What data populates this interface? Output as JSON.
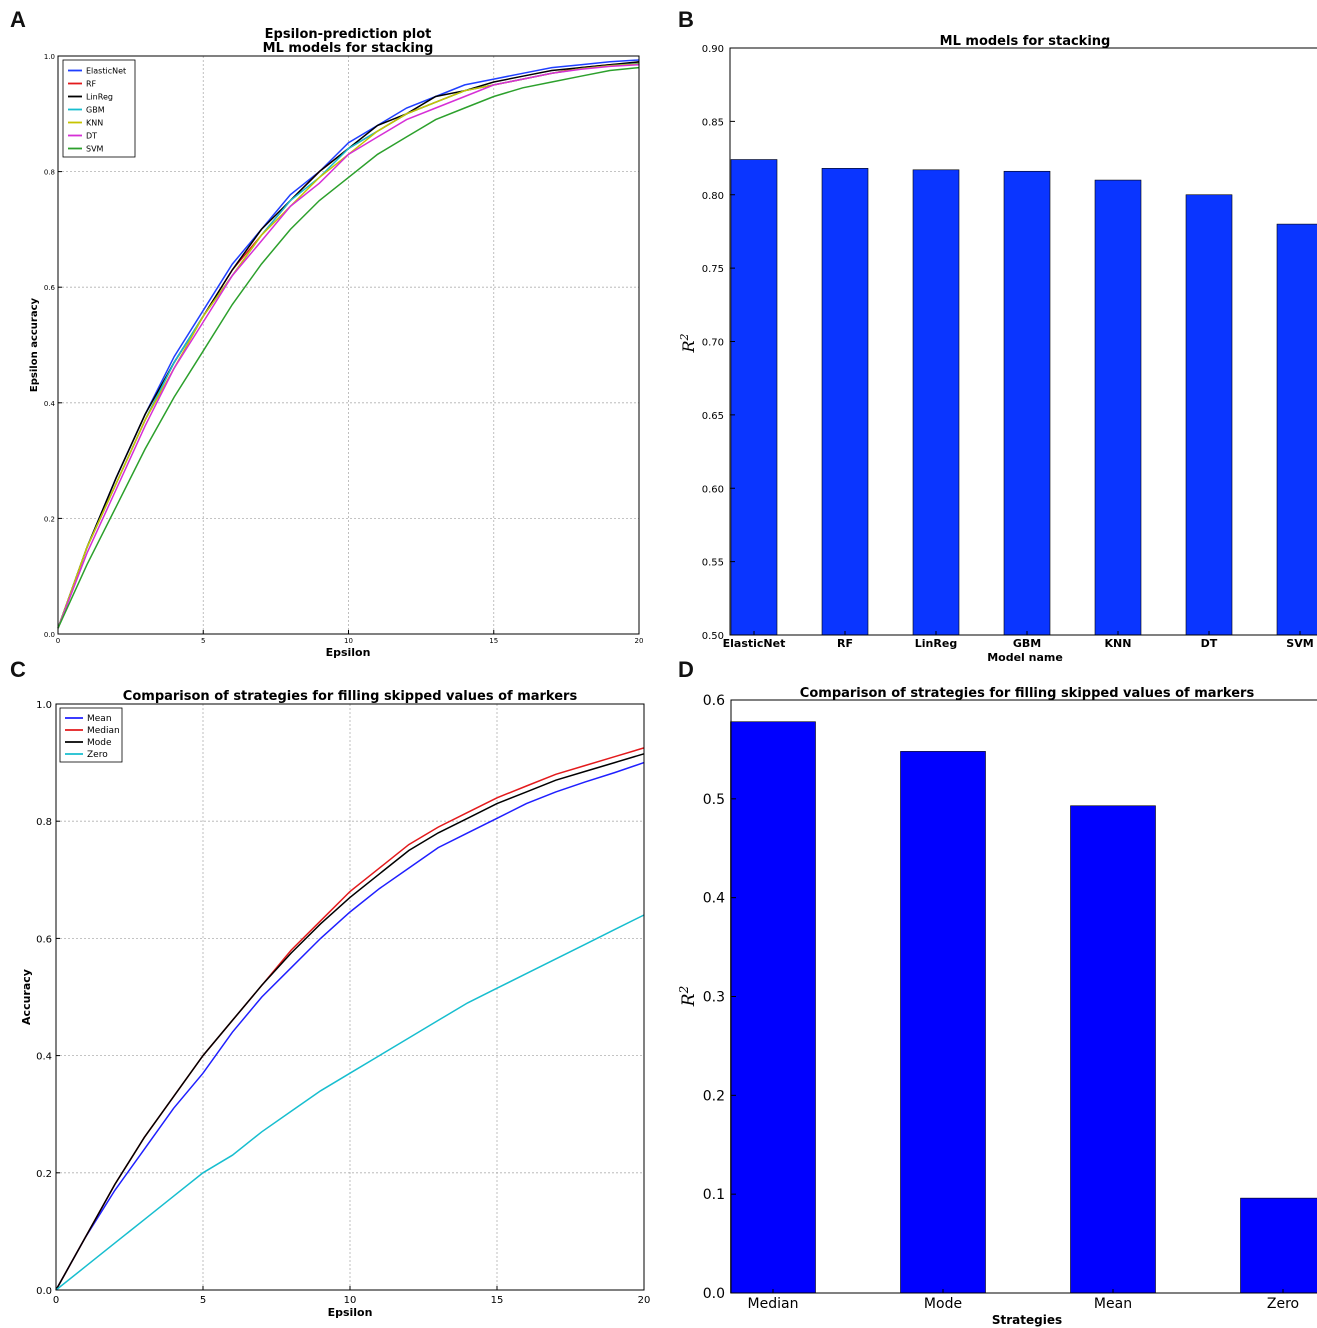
{
  "panel_letters": {
    "a": "A",
    "b": "B",
    "c": "C",
    "d": "D"
  },
  "chart_data": [
    {
      "panel": "A",
      "type": "line",
      "title": "Epsilon-prediction plot",
      "subtitle": "ML models for stacking",
      "xlabel": "Epsilon",
      "ylabel": "Epsilon accuracy",
      "xlim": [
        0,
        20
      ],
      "ylim": [
        0,
        1.0
      ],
      "grid": true,
      "legend": "top-left",
      "x_ticks": [
        "0",
        "5",
        "10",
        "15",
        "20"
      ],
      "y_ticks": [
        "0.0",
        "0.2",
        "0.4",
        "0.6",
        "0.8",
        "1.0"
      ],
      "x": [
        0,
        1,
        2,
        3,
        4,
        5,
        6,
        7,
        8,
        9,
        10,
        11,
        12,
        13,
        14,
        15,
        16,
        17,
        18,
        19,
        20
      ],
      "series": [
        {
          "name": "ElasticNet",
          "color": "#1f3fff",
          "values": [
            0.01,
            0.15,
            0.27,
            0.38,
            0.48,
            0.56,
            0.64,
            0.7,
            0.76,
            0.8,
            0.85,
            0.88,
            0.91,
            0.93,
            0.95,
            0.96,
            0.97,
            0.98,
            0.985,
            0.99,
            0.993
          ]
        },
        {
          "name": "RF",
          "color": "#e31a1c",
          "values": [
            0.01,
            0.15,
            0.26,
            0.37,
            0.47,
            0.55,
            0.63,
            0.69,
            0.75,
            0.8,
            0.84,
            0.87,
            0.9,
            0.92,
            0.94,
            0.95,
            0.96,
            0.97,
            0.98,
            0.985,
            0.988
          ]
        },
        {
          "name": "LinReg",
          "color": "#000000",
          "values": [
            0.01,
            0.15,
            0.27,
            0.38,
            0.47,
            0.55,
            0.63,
            0.7,
            0.75,
            0.8,
            0.84,
            0.88,
            0.9,
            0.93,
            0.94,
            0.955,
            0.965,
            0.975,
            0.98,
            0.985,
            0.99
          ]
        },
        {
          "name": "GBM",
          "color": "#17becf",
          "values": [
            0.01,
            0.15,
            0.26,
            0.37,
            0.47,
            0.55,
            0.62,
            0.69,
            0.75,
            0.79,
            0.84,
            0.87,
            0.9,
            0.92,
            0.94,
            0.95,
            0.96,
            0.97,
            0.978,
            0.983,
            0.987
          ]
        },
        {
          "name": "KNN",
          "color": "#c7c400",
          "values": [
            0.01,
            0.15,
            0.26,
            0.37,
            0.46,
            0.55,
            0.62,
            0.69,
            0.74,
            0.79,
            0.83,
            0.87,
            0.9,
            0.92,
            0.94,
            0.95,
            0.96,
            0.97,
            0.978,
            0.983,
            0.986
          ]
        },
        {
          "name": "DT",
          "color": "#d62fd6",
          "values": [
            0.01,
            0.14,
            0.25,
            0.36,
            0.46,
            0.54,
            0.62,
            0.68,
            0.74,
            0.78,
            0.83,
            0.86,
            0.89,
            0.91,
            0.93,
            0.95,
            0.96,
            0.97,
            0.977,
            0.982,
            0.985
          ]
        },
        {
          "name": "SVM",
          "color": "#2ca02c",
          "values": [
            0.01,
            0.12,
            0.22,
            0.32,
            0.41,
            0.49,
            0.57,
            0.64,
            0.7,
            0.75,
            0.79,
            0.83,
            0.86,
            0.89,
            0.91,
            0.93,
            0.945,
            0.955,
            0.965,
            0.975,
            0.98
          ]
        }
      ]
    },
    {
      "panel": "B",
      "type": "bar",
      "title": "ML models for stacking",
      "xlabel": "Model name",
      "ylabel": "R²",
      "ylim": [
        0.5,
        0.9
      ],
      "y_ticks": [
        "0.50",
        "0.55",
        "0.60",
        "0.65",
        "0.70",
        "0.75",
        "0.80",
        "0.85",
        "0.90"
      ],
      "categories": [
        "ElasticNet",
        "RF",
        "LinReg",
        "GBM",
        "KNN",
        "DT",
        "SVM"
      ],
      "values": [
        0.824,
        0.818,
        0.817,
        0.816,
        0.81,
        0.8,
        0.78
      ],
      "color": "#0a35ff"
    },
    {
      "panel": "C",
      "type": "line",
      "title": "Comparison of strategies for filling skipped values of markers",
      "xlabel": "Epsilon",
      "ylabel": "Accuracy",
      "xlim": [
        0,
        20
      ],
      "ylim": [
        0,
        1.0
      ],
      "grid": true,
      "legend": "top-left",
      "x_ticks": [
        "0",
        "5",
        "10",
        "15",
        "20"
      ],
      "y_ticks": [
        "0.0",
        "0.2",
        "0.4",
        "0.6",
        "0.8",
        "1.0"
      ],
      "x": [
        0,
        1,
        2,
        3,
        4,
        5,
        6,
        7,
        8,
        9,
        10,
        11,
        12,
        13,
        14,
        15,
        16,
        17,
        18,
        19,
        20
      ],
      "series": [
        {
          "name": "Mean",
          "color": "#1f1fff",
          "values": [
            0.0,
            0.09,
            0.17,
            0.24,
            0.31,
            0.37,
            0.44,
            0.5,
            0.55,
            0.6,
            0.645,
            0.685,
            0.72,
            0.755,
            0.78,
            0.805,
            0.83,
            0.85,
            0.867,
            0.883,
            0.9
          ]
        },
        {
          "name": "Median",
          "color": "#e31a1c",
          "values": [
            0.0,
            0.09,
            0.18,
            0.26,
            0.33,
            0.4,
            0.46,
            0.52,
            0.58,
            0.63,
            0.68,
            0.72,
            0.76,
            0.79,
            0.815,
            0.84,
            0.86,
            0.88,
            0.895,
            0.91,
            0.925
          ]
        },
        {
          "name": "Mode",
          "color": "#000000",
          "values": [
            0.0,
            0.09,
            0.18,
            0.26,
            0.33,
            0.4,
            0.46,
            0.52,
            0.575,
            0.625,
            0.67,
            0.71,
            0.75,
            0.78,
            0.805,
            0.83,
            0.85,
            0.87,
            0.885,
            0.9,
            0.915
          ]
        },
        {
          "name": "Zero",
          "color": "#17becf",
          "values": [
            0.0,
            0.04,
            0.08,
            0.12,
            0.16,
            0.2,
            0.23,
            0.27,
            0.305,
            0.34,
            0.37,
            0.4,
            0.43,
            0.46,
            0.49,
            0.515,
            0.54,
            0.565,
            0.59,
            0.615,
            0.64
          ]
        }
      ]
    },
    {
      "panel": "D",
      "type": "bar",
      "title": "Comparison of strategies for filling skipped values of markers",
      "xlabel": "Strategies",
      "ylabel": "R²",
      "ylim": [
        0.0,
        0.6
      ],
      "y_ticks": [
        "0.0",
        "0.1",
        "0.2",
        "0.3",
        "0.4",
        "0.5",
        "0.6"
      ],
      "categories": [
        "Median",
        "Mode",
        "Mean",
        "Zero"
      ],
      "values": [
        0.578,
        0.548,
        0.493,
        0.096
      ],
      "color": "#0000ff"
    }
  ]
}
